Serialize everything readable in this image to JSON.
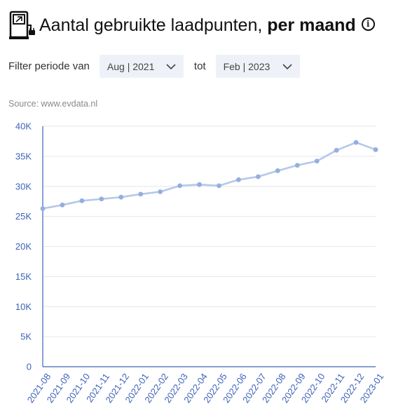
{
  "header": {
    "title_regular": "Aantal gebruikte laadpunten, ",
    "title_bold": "per maand",
    "logo_icon": "ev-charger-icon",
    "info_icon": "info-icon",
    "info_glyph": "i"
  },
  "filter": {
    "label": "Filter periode van",
    "from_value": "Aug | 2021",
    "to_label": "tot",
    "to_value": "Feb | 2023"
  },
  "source": "Source: www.evdata.nl",
  "colors": {
    "line": "#b5c8ea",
    "point": "#94aee0",
    "axis": "#3d63b8",
    "grid": "#e6e6e6"
  },
  "chart_data": {
    "type": "line",
    "title": "",
    "xlabel": "",
    "ylabel": "",
    "ylim": [
      0,
      40000
    ],
    "yticks": [
      0,
      5000,
      10000,
      15000,
      20000,
      25000,
      30000,
      35000,
      40000
    ],
    "ytick_labels": [
      "0",
      "5K",
      "10K",
      "15K",
      "20K",
      "25K",
      "30K",
      "35K",
      "40K"
    ],
    "grid": true,
    "categories": [
      "2021-08",
      "2021-09",
      "2021-10",
      "2021-11",
      "2021-12",
      "2022-01",
      "2022-02",
      "2022-03",
      "2022-04",
      "2022-05",
      "2022-06",
      "2022-07",
      "2022-08",
      "2022-09",
      "2022-10",
      "2022-11",
      "2022-12",
      "2023-01"
    ],
    "series": [
      {
        "values": [
          26300,
          26900,
          27600,
          27900,
          28200,
          28700,
          29100,
          30100,
          30300,
          30100,
          31100,
          31600,
          32600,
          33500,
          34200,
          36000,
          37300,
          36100
        ]
      }
    ]
  }
}
